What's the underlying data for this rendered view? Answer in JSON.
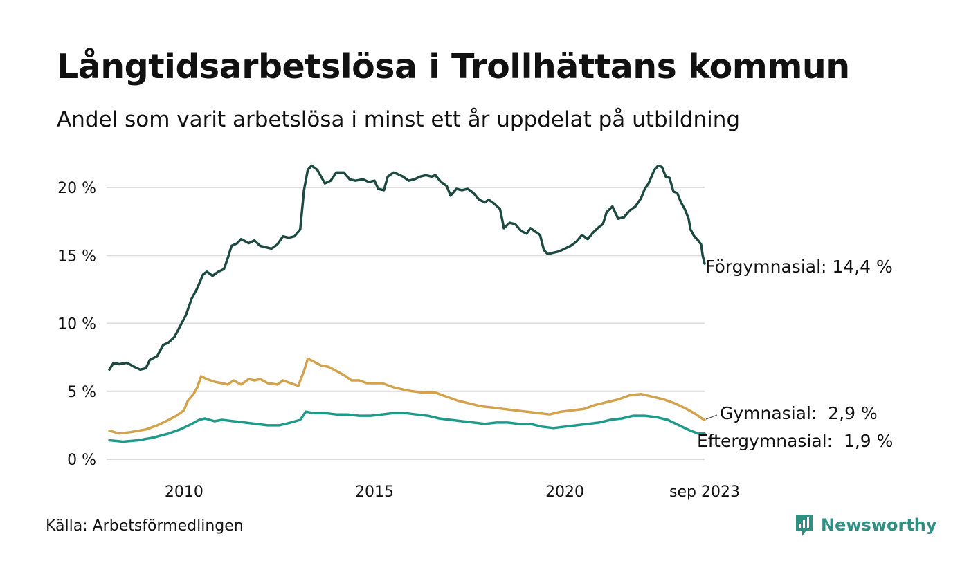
{
  "header": {
    "title": "Långtidsarbetslösa i Trollhättans kommun",
    "subtitle": "Andel som varit arbetslösa i minst ett år uppdelat på utbildning"
  },
  "footer": {
    "source": "Källa: Arbetsförmedlingen",
    "brand": "Newsworthy"
  },
  "colors": {
    "forgymnasial": "#1d4a40",
    "gymnasial": "#d2a24c",
    "eftergymnasial": "#1f9a8a",
    "grid": "#dcdcdc",
    "brand": "#2f8f83"
  },
  "chart_data": {
    "type": "line",
    "title": "Långtidsarbetslösa i Trollhättans kommun",
    "subtitle": "Andel som varit arbetslösa i minst ett år uppdelat på utbildning",
    "xlabel": "",
    "ylabel": "",
    "xlim": [
      2008.04,
      2023.67
    ],
    "ylim": [
      0,
      22
    ],
    "y_ticks": [
      0,
      5,
      10,
      15,
      20
    ],
    "y_tick_labels": [
      "0 %",
      "5 %",
      "10 %",
      "15 %",
      "20 %"
    ],
    "x_ticks": [
      2010,
      2015,
      2020,
      2023.67
    ],
    "x_tick_labels": [
      "2010",
      "2015",
      "2020",
      "sep 2023"
    ],
    "grid": true,
    "series": [
      {
        "name": "Förgymnasial",
        "end_label": "Förgymnasial: 14,4 %",
        "points": [
          [
            2008.04,
            6.6
          ],
          [
            2008.15,
            7.1
          ],
          [
            2008.3,
            7.0
          ],
          [
            2008.5,
            7.1
          ],
          [
            2008.7,
            6.8
          ],
          [
            2008.85,
            6.6
          ],
          [
            2009.0,
            6.7
          ],
          [
            2009.1,
            7.3
          ],
          [
            2009.3,
            7.6
          ],
          [
            2009.45,
            8.4
          ],
          [
            2009.6,
            8.6
          ],
          [
            2009.75,
            9.0
          ],
          [
            2009.9,
            9.8
          ],
          [
            2010.05,
            10.6
          ],
          [
            2010.2,
            11.8
          ],
          [
            2010.35,
            12.6
          ],
          [
            2010.5,
            13.6
          ],
          [
            2010.6,
            13.8
          ],
          [
            2010.75,
            13.5
          ],
          [
            2010.9,
            13.8
          ],
          [
            2011.05,
            14.0
          ],
          [
            2011.15,
            14.8
          ],
          [
            2011.25,
            15.7
          ],
          [
            2011.4,
            15.9
          ],
          [
            2011.5,
            16.2
          ],
          [
            2011.7,
            15.9
          ],
          [
            2011.85,
            16.1
          ],
          [
            2012.0,
            15.7
          ],
          [
            2012.15,
            15.6
          ],
          [
            2012.3,
            15.5
          ],
          [
            2012.45,
            15.8
          ],
          [
            2012.6,
            16.4
          ],
          [
            2012.75,
            16.3
          ],
          [
            2012.9,
            16.4
          ],
          [
            2013.05,
            16.9
          ],
          [
            2013.15,
            19.8
          ],
          [
            2013.25,
            21.3
          ],
          [
            2013.35,
            21.6
          ],
          [
            2013.5,
            21.3
          ],
          [
            2013.6,
            20.8
          ],
          [
            2013.7,
            20.3
          ],
          [
            2013.85,
            20.5
          ],
          [
            2014.0,
            21.1
          ],
          [
            2014.2,
            21.1
          ],
          [
            2014.35,
            20.6
          ],
          [
            2014.5,
            20.5
          ],
          [
            2014.7,
            20.6
          ],
          [
            2014.85,
            20.4
          ],
          [
            2015.0,
            20.5
          ],
          [
            2015.1,
            19.9
          ],
          [
            2015.25,
            19.8
          ],
          [
            2015.35,
            20.8
          ],
          [
            2015.5,
            21.1
          ],
          [
            2015.6,
            21.0
          ],
          [
            2015.75,
            20.8
          ],
          [
            2015.9,
            20.5
          ],
          [
            2016.05,
            20.6
          ],
          [
            2016.2,
            20.8
          ],
          [
            2016.35,
            20.9
          ],
          [
            2016.5,
            20.8
          ],
          [
            2016.6,
            20.9
          ],
          [
            2016.75,
            20.4
          ],
          [
            2016.9,
            20.1
          ],
          [
            2017.0,
            19.4
          ],
          [
            2017.15,
            19.9
          ],
          [
            2017.3,
            19.8
          ],
          [
            2017.45,
            19.9
          ],
          [
            2017.6,
            19.6
          ],
          [
            2017.75,
            19.1
          ],
          [
            2017.9,
            18.9
          ],
          [
            2018.0,
            19.1
          ],
          [
            2018.15,
            18.8
          ],
          [
            2018.3,
            18.4
          ],
          [
            2018.4,
            17.0
          ],
          [
            2018.55,
            17.4
          ],
          [
            2018.7,
            17.3
          ],
          [
            2018.85,
            16.8
          ],
          [
            2019.0,
            16.6
          ],
          [
            2019.1,
            17.0
          ],
          [
            2019.2,
            16.8
          ],
          [
            2019.35,
            16.5
          ],
          [
            2019.45,
            15.4
          ],
          [
            2019.55,
            15.1
          ],
          [
            2019.7,
            15.2
          ],
          [
            2019.85,
            15.3
          ],
          [
            2020.0,
            15.5
          ],
          [
            2020.15,
            15.7
          ],
          [
            2020.3,
            16.0
          ],
          [
            2020.45,
            16.5
          ],
          [
            2020.6,
            16.2
          ],
          [
            2020.75,
            16.7
          ],
          [
            2020.9,
            17.1
          ],
          [
            2021.0,
            17.3
          ],
          [
            2021.1,
            18.2
          ],
          [
            2021.25,
            18.6
          ],
          [
            2021.4,
            17.7
          ],
          [
            2021.55,
            17.8
          ],
          [
            2021.7,
            18.3
          ],
          [
            2021.85,
            18.6
          ],
          [
            2022.0,
            19.2
          ],
          [
            2022.1,
            19.9
          ],
          [
            2022.2,
            20.3
          ],
          [
            2022.35,
            21.3
          ],
          [
            2022.45,
            21.6
          ],
          [
            2022.55,
            21.5
          ],
          [
            2022.65,
            20.8
          ],
          [
            2022.75,
            20.7
          ],
          [
            2022.85,
            19.7
          ],
          [
            2022.95,
            19.6
          ],
          [
            2023.05,
            18.9
          ],
          [
            2023.15,
            18.4
          ],
          [
            2023.25,
            17.7
          ],
          [
            2023.3,
            16.9
          ],
          [
            2023.4,
            16.4
          ],
          [
            2023.5,
            16.1
          ],
          [
            2023.58,
            15.8
          ],
          [
            2023.62,
            15.0
          ],
          [
            2023.67,
            14.4
          ]
        ]
      },
      {
        "name": "Gymnasial",
        "end_label": "Gymnasial:  2,9 %",
        "points": [
          [
            2008.04,
            2.1
          ],
          [
            2008.3,
            1.9
          ],
          [
            2008.6,
            2.0
          ],
          [
            2009.0,
            2.2
          ],
          [
            2009.3,
            2.5
          ],
          [
            2009.6,
            2.9
          ],
          [
            2009.8,
            3.2
          ],
          [
            2010.0,
            3.6
          ],
          [
            2010.1,
            4.3
          ],
          [
            2010.25,
            4.8
          ],
          [
            2010.35,
            5.3
          ],
          [
            2010.45,
            6.1
          ],
          [
            2010.6,
            5.9
          ],
          [
            2010.8,
            5.7
          ],
          [
            2011.0,
            5.6
          ],
          [
            2011.15,
            5.5
          ],
          [
            2011.3,
            5.8
          ],
          [
            2011.5,
            5.5
          ],
          [
            2011.7,
            5.9
          ],
          [
            2011.85,
            5.8
          ],
          [
            2012.0,
            5.9
          ],
          [
            2012.2,
            5.6
          ],
          [
            2012.45,
            5.5
          ],
          [
            2012.6,
            5.8
          ],
          [
            2012.8,
            5.6
          ],
          [
            2013.0,
            5.4
          ],
          [
            2013.15,
            6.5
          ],
          [
            2013.25,
            7.4
          ],
          [
            2013.4,
            7.2
          ],
          [
            2013.6,
            6.9
          ],
          [
            2013.8,
            6.8
          ],
          [
            2014.0,
            6.5
          ],
          [
            2014.2,
            6.2
          ],
          [
            2014.4,
            5.8
          ],
          [
            2014.6,
            5.8
          ],
          [
            2014.8,
            5.6
          ],
          [
            2015.0,
            5.6
          ],
          [
            2015.2,
            5.6
          ],
          [
            2015.5,
            5.3
          ],
          [
            2015.8,
            5.1
          ],
          [
            2016.0,
            5.0
          ],
          [
            2016.3,
            4.9
          ],
          [
            2016.6,
            4.9
          ],
          [
            2016.9,
            4.6
          ],
          [
            2017.2,
            4.3
          ],
          [
            2017.5,
            4.1
          ],
          [
            2017.8,
            3.9
          ],
          [
            2018.1,
            3.8
          ],
          [
            2018.4,
            3.7
          ],
          [
            2018.7,
            3.6
          ],
          [
            2019.0,
            3.5
          ],
          [
            2019.3,
            3.4
          ],
          [
            2019.6,
            3.3
          ],
          [
            2019.9,
            3.5
          ],
          [
            2020.2,
            3.6
          ],
          [
            2020.5,
            3.7
          ],
          [
            2020.8,
            4.0
          ],
          [
            2021.1,
            4.2
          ],
          [
            2021.4,
            4.4
          ],
          [
            2021.7,
            4.7
          ],
          [
            2022.0,
            4.8
          ],
          [
            2022.3,
            4.6
          ],
          [
            2022.6,
            4.4
          ],
          [
            2022.9,
            4.1
          ],
          [
            2023.2,
            3.7
          ],
          [
            2023.45,
            3.3
          ],
          [
            2023.6,
            3.0
          ],
          [
            2023.67,
            2.9
          ]
        ]
      },
      {
        "name": "Eftergymnasial",
        "end_label": "Eftergymnasial:  1,9 %",
        "points": [
          [
            2008.04,
            1.4
          ],
          [
            2008.4,
            1.3
          ],
          [
            2008.8,
            1.4
          ],
          [
            2009.2,
            1.6
          ],
          [
            2009.6,
            1.9
          ],
          [
            2009.9,
            2.2
          ],
          [
            2010.2,
            2.6
          ],
          [
            2010.4,
            2.9
          ],
          [
            2010.55,
            3.0
          ],
          [
            2010.8,
            2.8
          ],
          [
            2011.0,
            2.9
          ],
          [
            2011.3,
            2.8
          ],
          [
            2011.6,
            2.7
          ],
          [
            2011.9,
            2.6
          ],
          [
            2012.2,
            2.5
          ],
          [
            2012.5,
            2.5
          ],
          [
            2012.8,
            2.7
          ],
          [
            2013.05,
            2.9
          ],
          [
            2013.2,
            3.5
          ],
          [
            2013.4,
            3.4
          ],
          [
            2013.7,
            3.4
          ],
          [
            2014.0,
            3.3
          ],
          [
            2014.3,
            3.3
          ],
          [
            2014.6,
            3.2
          ],
          [
            2014.9,
            3.2
          ],
          [
            2015.2,
            3.3
          ],
          [
            2015.5,
            3.4
          ],
          [
            2015.8,
            3.4
          ],
          [
            2016.1,
            3.3
          ],
          [
            2016.4,
            3.2
          ],
          [
            2016.7,
            3.0
          ],
          [
            2017.0,
            2.9
          ],
          [
            2017.3,
            2.8
          ],
          [
            2017.6,
            2.7
          ],
          [
            2017.9,
            2.6
          ],
          [
            2018.2,
            2.7
          ],
          [
            2018.5,
            2.7
          ],
          [
            2018.8,
            2.6
          ],
          [
            2019.1,
            2.6
          ],
          [
            2019.4,
            2.4
          ],
          [
            2019.7,
            2.3
          ],
          [
            2020.0,
            2.4
          ],
          [
            2020.3,
            2.5
          ],
          [
            2020.6,
            2.6
          ],
          [
            2020.9,
            2.7
          ],
          [
            2021.2,
            2.9
          ],
          [
            2021.5,
            3.0
          ],
          [
            2021.8,
            3.2
          ],
          [
            2022.1,
            3.2
          ],
          [
            2022.4,
            3.1
          ],
          [
            2022.7,
            2.9
          ],
          [
            2023.0,
            2.5
          ],
          [
            2023.3,
            2.1
          ],
          [
            2023.5,
            1.9
          ],
          [
            2023.67,
            1.9
          ]
        ]
      }
    ]
  }
}
